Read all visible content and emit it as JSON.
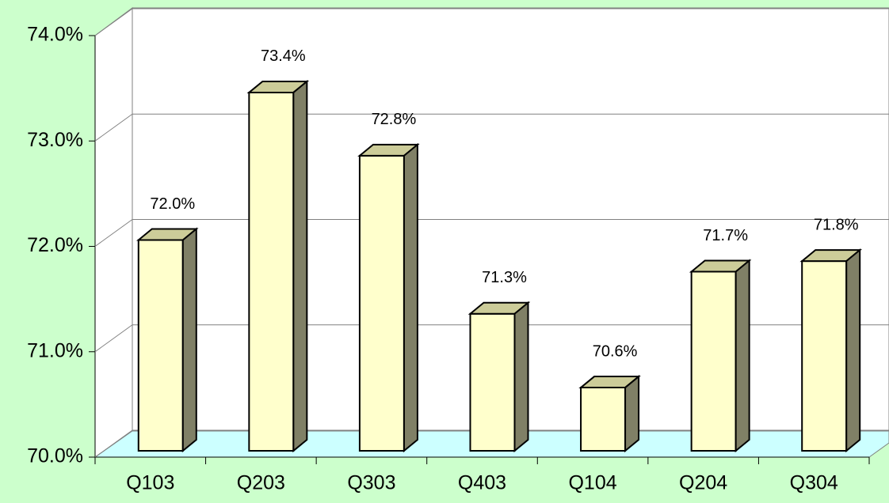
{
  "chart_data": {
    "type": "bar",
    "categories": [
      "Q103",
      "Q203",
      "Q303",
      "Q403",
      "Q104",
      "Q204",
      "Q304"
    ],
    "values": [
      72.0,
      73.4,
      72.8,
      71.3,
      70.6,
      71.7,
      71.8
    ],
    "value_labels": [
      "72.0%",
      "73.4%",
      "72.8%",
      "71.3%",
      "70.6%",
      "71.7%",
      "71.8%"
    ],
    "color": "#ffffcc",
    "ylim": [
      70,
      74
    ],
    "yticks": [
      {
        "value": 70,
        "label": "70.0%"
      },
      {
        "value": 71,
        "label": "71.0%"
      },
      {
        "value": 72,
        "label": "72.0%"
      },
      {
        "value": 73,
        "label": "73.0%"
      },
      {
        "value": 74,
        "label": "74.0%"
      }
    ],
    "grid": true
  }
}
